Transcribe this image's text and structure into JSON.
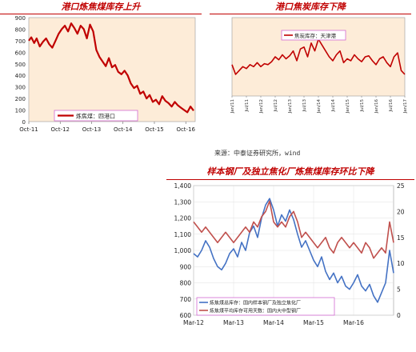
{
  "source_note": "来源：中泰证券研究所，wind",
  "chart_data": [
    {
      "id": "panel1",
      "type": "line",
      "title": "港口炼焦煤库存上升",
      "legend": {
        "placement": "bottom-left",
        "entries": [
          "炼焦煤：四港口"
        ]
      },
      "ylim": [
        0,
        900
      ],
      "yticks": [
        0,
        100,
        200,
        300,
        400,
        500,
        600,
        700,
        800,
        900
      ],
      "xticks": [
        "Oct-11",
        "Oct-12",
        "Oct-13",
        "Oct-14",
        "Oct-15",
        "Oct-16"
      ],
      "xrange": [
        2011.75,
        2017.05
      ],
      "grid": false,
      "series": [
        {
          "name": "炼焦煤：四港口",
          "color": "#c00000",
          "x": [
            2011.75,
            2011.83,
            2011.92,
            2012.0,
            2012.1,
            2012.2,
            2012.3,
            2012.4,
            2012.5,
            2012.6,
            2012.7,
            2012.8,
            2012.9,
            2013.0,
            2013.1,
            2013.2,
            2013.3,
            2013.4,
            2013.5,
            2013.6,
            2013.7,
            2013.8,
            2013.9,
            2014.0,
            2014.1,
            2014.2,
            2014.3,
            2014.4,
            2014.5,
            2014.6,
            2014.7,
            2014.8,
            2014.9,
            2015.0,
            2015.1,
            2015.2,
            2015.3,
            2015.4,
            2015.5,
            2015.6,
            2015.7,
            2015.8,
            2015.9,
            2016.0,
            2016.1,
            2016.2,
            2016.3,
            2016.4,
            2016.5,
            2016.6,
            2016.7,
            2016.8,
            2016.9,
            2017.0
          ],
          "y": [
            700,
            730,
            680,
            720,
            650,
            690,
            720,
            670,
            640,
            700,
            760,
            800,
            830,
            780,
            850,
            810,
            760,
            830,
            800,
            720,
            840,
            780,
            620,
            560,
            520,
            480,
            550,
            470,
            490,
            430,
            410,
            440,
            400,
            330,
            290,
            310,
            240,
            260,
            200,
            230,
            170,
            190,
            150,
            220,
            180,
            160,
            130,
            170,
            140,
            120,
            100,
            80,
            130,
            95
          ]
        }
      ]
    },
    {
      "id": "panel2",
      "type": "line",
      "title": "港口焦炭库存下降",
      "legend": {
        "placement": "top-left",
        "entries": [
          "焦炭库存：天津港"
        ]
      },
      "xticks": [
        "Jan/11",
        "Jan/12",
        "Jan/13",
        "Jan/14",
        "Jan/15",
        "Jan/16",
        "Jan/17",
        "Jan/11",
        "Jan/12",
        "Jan/13",
        "Jan/14",
        "Jan/15",
        "Jan/16",
        "Jan/17",
        "Jul/12",
        "Jul/13",
        "Jul/14",
        "Jul/15",
        "Jul/16"
      ],
      "xtick_order": [
        "Jan/11",
        "Jul/11",
        "Jan/12",
        "Jul/12",
        "Jan/13",
        "Jul/13",
        "Jan/14",
        "Jul/14",
        "Jan/15",
        "Jul/15",
        "Jan/16",
        "Jul/16",
        "Jan/17"
      ],
      "ylim": [
        0,
        400
      ],
      "grid": false,
      "series": [
        {
          "name": "焦炭库存：天津港",
          "color": "#c00000",
          "x": [
            0.0,
            0.25,
            0.5,
            0.75,
            1.0,
            1.25,
            1.5,
            1.75,
            2.0,
            2.25,
            2.5,
            2.75,
            3.0,
            3.25,
            3.5,
            3.75,
            4.0,
            4.25,
            4.5,
            4.75,
            5.0,
            5.25,
            5.5,
            5.75,
            6.0,
            6.25,
            6.5,
            6.75,
            7.0,
            7.25,
            7.5,
            7.75,
            8.0,
            8.25,
            8.5,
            8.75,
            9.0,
            9.25,
            9.5,
            9.75,
            10.0,
            10.25,
            10.5,
            10.75,
            11.0,
            11.25,
            11.5,
            11.75,
            12.0
          ],
          "y": [
            160,
            110,
            130,
            150,
            140,
            160,
            150,
            170,
            150,
            165,
            160,
            175,
            200,
            185,
            210,
            190,
            205,
            230,
            180,
            240,
            250,
            200,
            270,
            230,
            290,
            260,
            230,
            200,
            180,
            210,
            230,
            170,
            190,
            180,
            210,
            190,
            175,
            200,
            205,
            180,
            160,
            190,
            200,
            170,
            150,
            200,
            220,
            130,
            110
          ]
        }
      ]
    },
    {
      "id": "panel3",
      "type": "line",
      "title": "样本钢厂及独立焦化厂炼焦煤库存环比下降",
      "legend": {
        "placement": "bottom-left",
        "entries": [
          "炼焦煤总库存：国内样本钢厂及独立焦化厂",
          "炼焦煤平均库存可用天数：国内大中型钢厂"
        ]
      },
      "ylim": [
        600,
        1400
      ],
      "yticks": [
        600,
        700,
        800,
        900,
        1000,
        1100,
        1200,
        1300,
        1400
      ],
      "y2lim": [
        0,
        25
      ],
      "y2ticks": [
        0,
        5,
        10,
        15,
        20,
        25
      ],
      "xticks": [
        "Mar-12",
        "Mar-13",
        "Mar-14",
        "Mar-15",
        "Mar-16"
      ],
      "xrange": [
        2012.0,
        2017.0
      ],
      "grid": true,
      "series": [
        {
          "name": "炼焦煤总库存：国内样本钢厂及独立焦化厂",
          "color": "#4472c4",
          "axis": "left",
          "x": [
            2012.0,
            2012.1,
            2012.2,
            2012.3,
            2012.4,
            2012.5,
            2012.6,
            2012.7,
            2012.8,
            2012.9,
            2013.0,
            2013.1,
            2013.2,
            2013.3,
            2013.4,
            2013.5,
            2013.6,
            2013.7,
            2013.8,
            2013.9,
            2014.0,
            2014.1,
            2014.2,
            2014.3,
            2014.4,
            2014.5,
            2014.6,
            2014.7,
            2014.8,
            2014.9,
            2015.0,
            2015.1,
            2015.2,
            2015.3,
            2015.4,
            2015.5,
            2015.6,
            2015.7,
            2015.8,
            2015.9,
            2016.0,
            2016.1,
            2016.2,
            2016.3,
            2016.4,
            2016.5,
            2016.6,
            2016.7,
            2016.8,
            2016.9,
            2017.0
          ],
          "y": [
            980,
            960,
            1000,
            1060,
            1020,
            950,
            900,
            880,
            920,
            980,
            1010,
            960,
            1050,
            1000,
            1110,
            1150,
            1080,
            1200,
            1280,
            1320,
            1250,
            1150,
            1220,
            1180,
            1250,
            1190,
            1100,
            1020,
            1060,
            1000,
            940,
            900,
            960,
            870,
            820,
            860,
            800,
            840,
            780,
            760,
            800,
            850,
            780,
            750,
            790,
            720,
            680,
            740,
            800,
            1000,
            860
          ]
        },
        {
          "name": "炼焦煤平均库存可用天数：国内大中型钢厂",
          "color": "#c0504d",
          "axis": "right",
          "x": [
            2012.0,
            2012.1,
            2012.2,
            2012.3,
            2012.4,
            2012.5,
            2012.6,
            2012.7,
            2012.8,
            2012.9,
            2013.0,
            2013.1,
            2013.2,
            2013.3,
            2013.4,
            2013.5,
            2013.6,
            2013.7,
            2013.8,
            2013.9,
            2014.0,
            2014.1,
            2014.2,
            2014.3,
            2014.4,
            2014.5,
            2014.6,
            2014.7,
            2014.8,
            2014.9,
            2015.0,
            2015.1,
            2015.2,
            2015.3,
            2015.4,
            2015.5,
            2015.6,
            2015.7,
            2015.8,
            2015.9,
            2016.0,
            2016.1,
            2016.2,
            2016.3,
            2016.4,
            2016.5,
            2016.6,
            2016.7,
            2016.8,
            2016.9,
            2017.0
          ],
          "y": [
            18,
            17,
            16,
            17,
            16,
            15,
            14,
            15,
            16,
            15,
            14,
            15,
            16,
            17,
            16,
            18,
            17,
            19,
            20,
            22,
            18,
            17,
            18,
            17,
            19,
            20,
            18,
            15,
            16,
            15,
            14,
            13,
            14,
            15,
            13,
            12,
            14,
            15,
            14,
            13,
            14,
            13,
            12,
            14,
            13,
            11,
            12,
            13,
            12,
            18,
            14
          ]
        }
      ]
    }
  ]
}
